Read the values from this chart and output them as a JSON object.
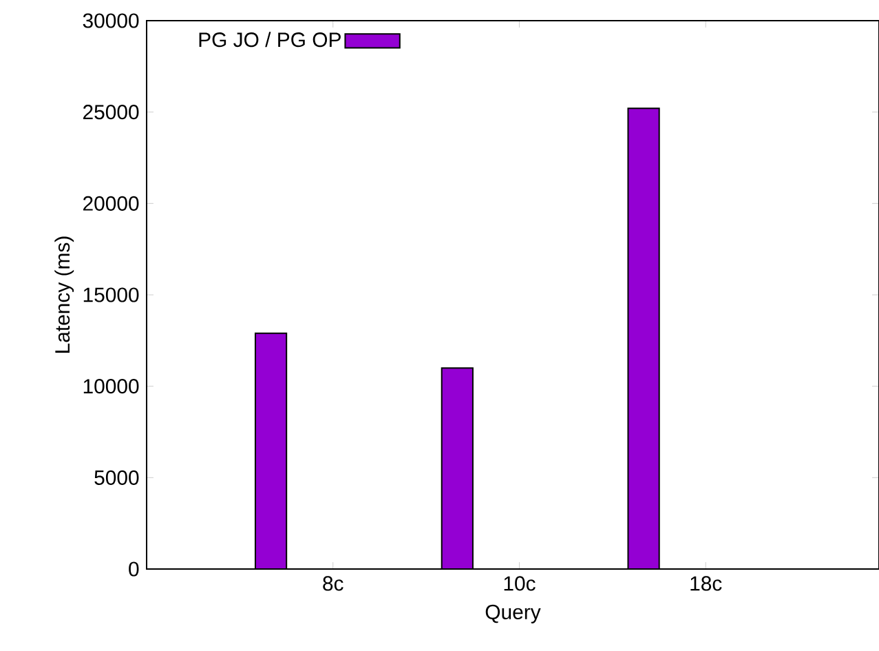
{
  "chart_data": {
    "type": "bar",
    "xlabel": "Query",
    "ylabel": "Latency (ms)",
    "categories": [
      "8c",
      "10c",
      "18c"
    ],
    "series": [
      {
        "name": "PG JO / PG OP",
        "color": "#9400d3",
        "values": [
          12900,
          11000,
          25200
        ]
      }
    ],
    "ylim": [
      0,
      30000
    ],
    "yticks": [
      0,
      5000,
      10000,
      15000,
      20000,
      25000,
      30000
    ],
    "legend": "top left",
    "grid": false
  }
}
